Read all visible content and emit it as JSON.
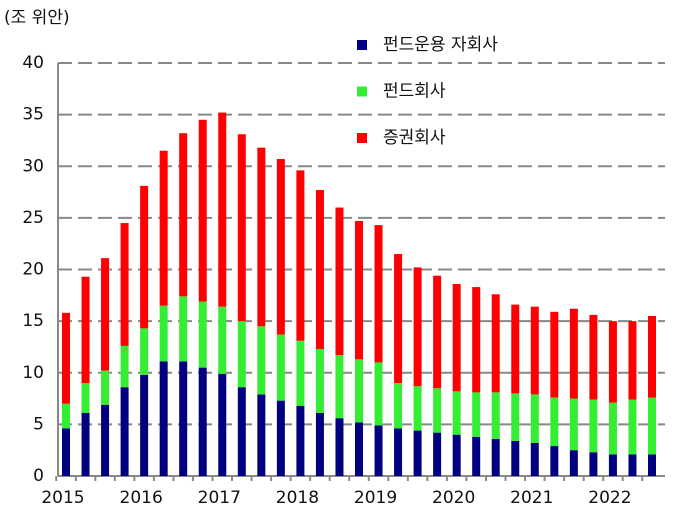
{
  "chart_data": {
    "type": "stacked_bar",
    "unit_label": "(조 위안)",
    "categories": [
      "2015",
      null,
      null,
      null,
      "2016",
      null,
      null,
      null,
      "2017",
      null,
      null,
      null,
      "2018",
      null,
      null,
      null,
      "2019",
      null,
      null,
      null,
      "2020",
      null,
      null,
      null,
      "2021",
      null,
      null,
      null,
      "2022",
      null,
      null
    ],
    "series": [
      {
        "name": "펀드운용 자회사",
        "color": "#000080",
        "values": [
          4.6,
          6.1,
          6.9,
          8.6,
          9.8,
          11.1,
          11.1,
          10.5,
          9.9,
          8.6,
          7.9,
          7.3,
          6.8,
          6.1,
          5.6,
          5.2,
          4.9,
          4.6,
          4.4,
          4.2,
          4.0,
          3.8,
          3.6,
          3.4,
          3.2,
          2.9,
          2.5,
          2.3,
          2.1,
          2.1,
          2.1
        ]
      },
      {
        "name": "펀드회사",
        "color": "#33ee33",
        "values": [
          2.4,
          2.9,
          3.3,
          4.0,
          4.5,
          5.4,
          6.3,
          6.4,
          6.5,
          6.4,
          6.6,
          6.4,
          6.3,
          6.2,
          6.1,
          6.1,
          6.1,
          4.4,
          4.3,
          4.3,
          4.2,
          4.3,
          4.5,
          4.6,
          4.7,
          4.7,
          5.0,
          5.1,
          5.0,
          5.3,
          5.5
        ]
      },
      {
        "name": "증권회사",
        "color": "#ff0000",
        "values": [
          8.8,
          10.3,
          10.9,
          11.9,
          13.8,
          15.0,
          15.8,
          17.6,
          18.8,
          18.1,
          17.3,
          17.0,
          16.5,
          15.4,
          14.3,
          13.4,
          13.3,
          12.5,
          11.5,
          10.9,
          10.4,
          10.2,
          9.5,
          8.6,
          8.5,
          8.3,
          8.7,
          8.2,
          7.9,
          7.6,
          7.9
        ]
      }
    ],
    "ylim": [
      0,
      40
    ],
    "yticks": [
      0,
      5,
      10,
      15,
      20,
      25,
      30,
      35,
      40
    ],
    "grid": true
  }
}
